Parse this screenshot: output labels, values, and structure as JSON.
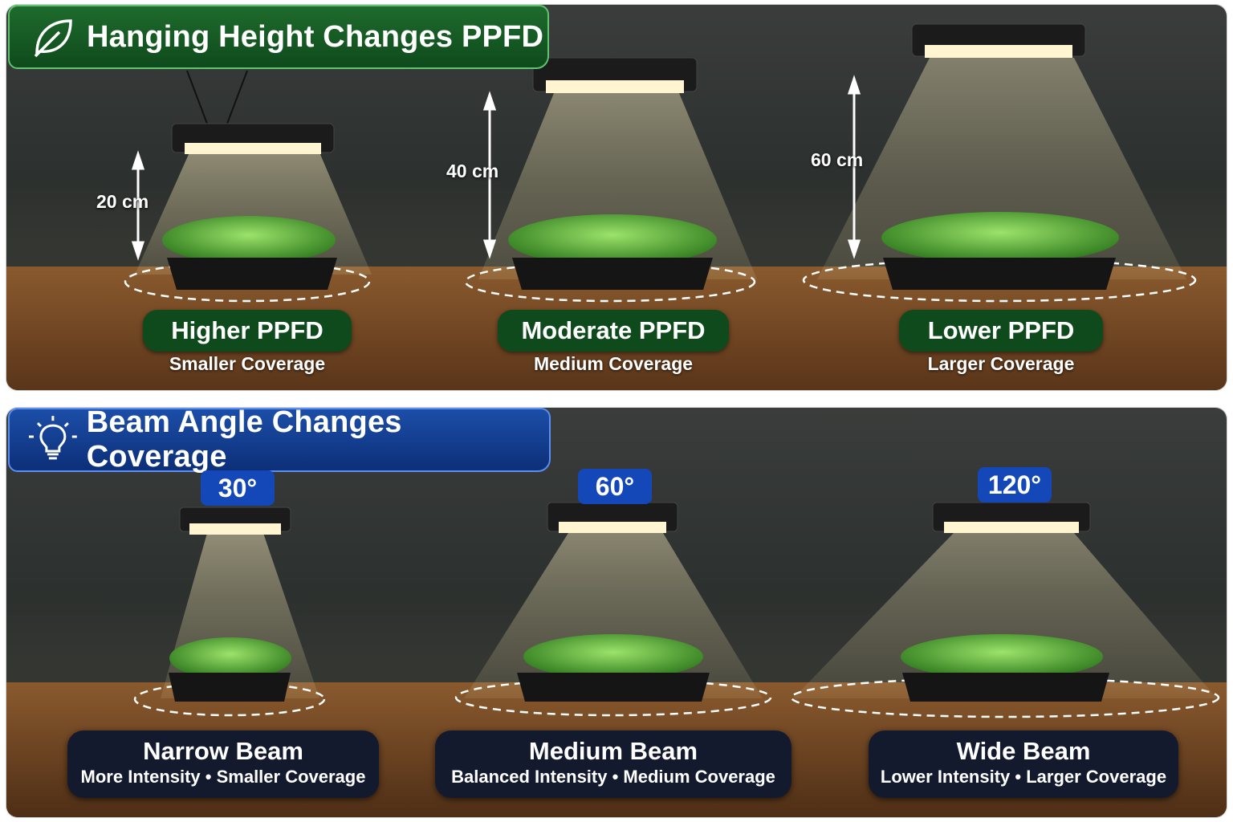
{
  "colors": {
    "green_accent": "#0f4a1c",
    "blue_accent": "#1447b8",
    "card_dark": "#141a2e",
    "light_beam": "#f3e2a8"
  },
  "top_section": {
    "title": "Hanging Height Changes PPFD",
    "icon": "leaf-icon",
    "items": [
      {
        "height": "20 cm",
        "label": "Higher PPFD",
        "sub": "Smaller Coverage"
      },
      {
        "height": "40 cm",
        "label": "Moderate PPFD",
        "sub": "Medium Coverage"
      },
      {
        "height": "60 cm",
        "label": "Lower PPFD",
        "sub": "Larger Coverage"
      }
    ]
  },
  "bottom_section": {
    "title": "Beam Angle Changes Coverage",
    "icon": "lightbulb-icon",
    "items": [
      {
        "angle": "30°",
        "label": "Narrow Beam",
        "sub": "More Intensity • Smaller Coverage"
      },
      {
        "angle": "60°",
        "label": "Medium Beam",
        "sub": "Balanced Intensity • Medium Coverage"
      },
      {
        "angle": "120°",
        "label": "Wide Beam",
        "sub": "Lower Intensity • Larger Coverage"
      }
    ]
  }
}
